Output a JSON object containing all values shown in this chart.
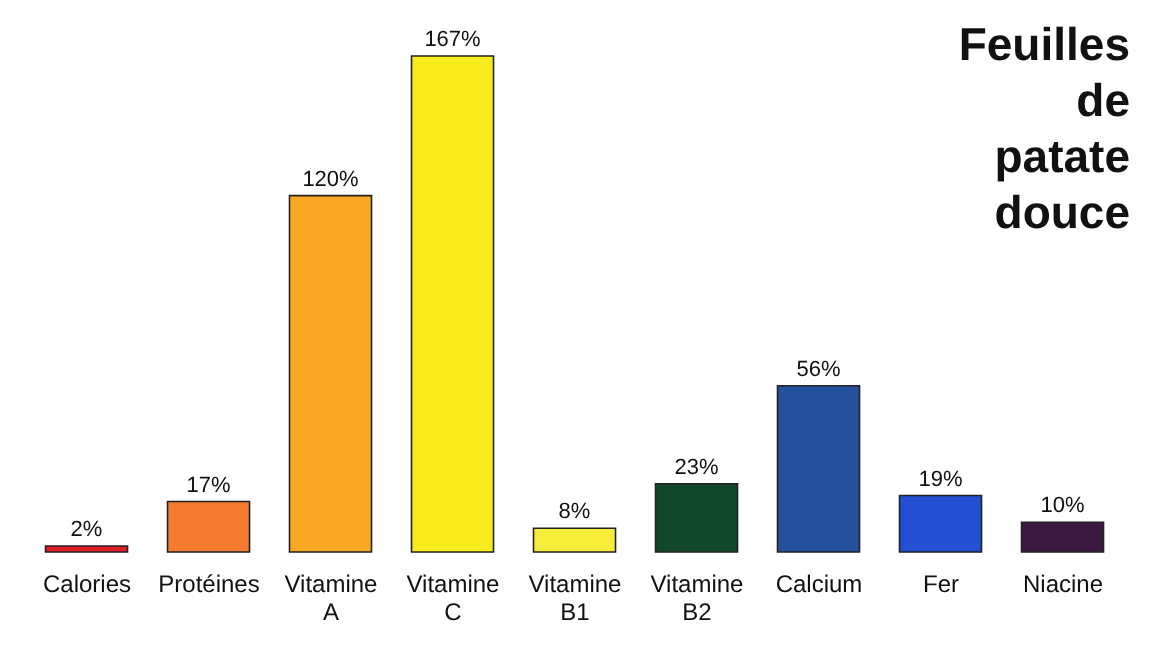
{
  "chart_data": {
    "type": "bar",
    "title": "Feuilles de patate douce",
    "categories": [
      "Calories",
      "Protéines",
      "Vitamine A",
      "Vitamine C",
      "Vitamine B1",
      "Vitamine B2",
      "Calcium",
      "Fer",
      "Niacine"
    ],
    "values": [
      2,
      17,
      120,
      167,
      8,
      23,
      56,
      19,
      10
    ],
    "colors": [
      "#e41e26",
      "#f47a30",
      "#f9a825",
      "#f8ec1c",
      "#f6ec3a",
      "#12482a",
      "#25509e",
      "#2350d2",
      "#3a1840"
    ],
    "value_labels": [
      "2%",
      "17%",
      "120%",
      "167%",
      "8%",
      "23%",
      "56%",
      "19%",
      "10%"
    ]
  }
}
